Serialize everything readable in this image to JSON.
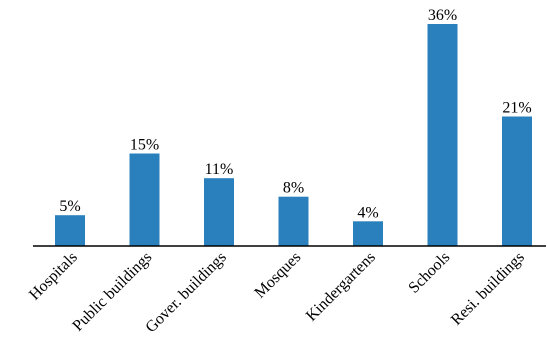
{
  "chart_data": {
    "type": "bar",
    "categories": [
      "Hospitals",
      "Public buildings",
      "Gover. buildings",
      "Mosques",
      "Kindergartens",
      "Schools",
      "Resi. buildings"
    ],
    "values": [
      5,
      15,
      11,
      8,
      4,
      36,
      21
    ],
    "value_labels": [
      "5%",
      "15%",
      "11%",
      "8%",
      "4%",
      "36%",
      "21%"
    ],
    "unit": "%",
    "title": "",
    "xlabel": "",
    "ylabel": "",
    "ylim": [
      0,
      36
    ],
    "grid": false,
    "legend": "none",
    "bar_color": "#2a80bd"
  }
}
